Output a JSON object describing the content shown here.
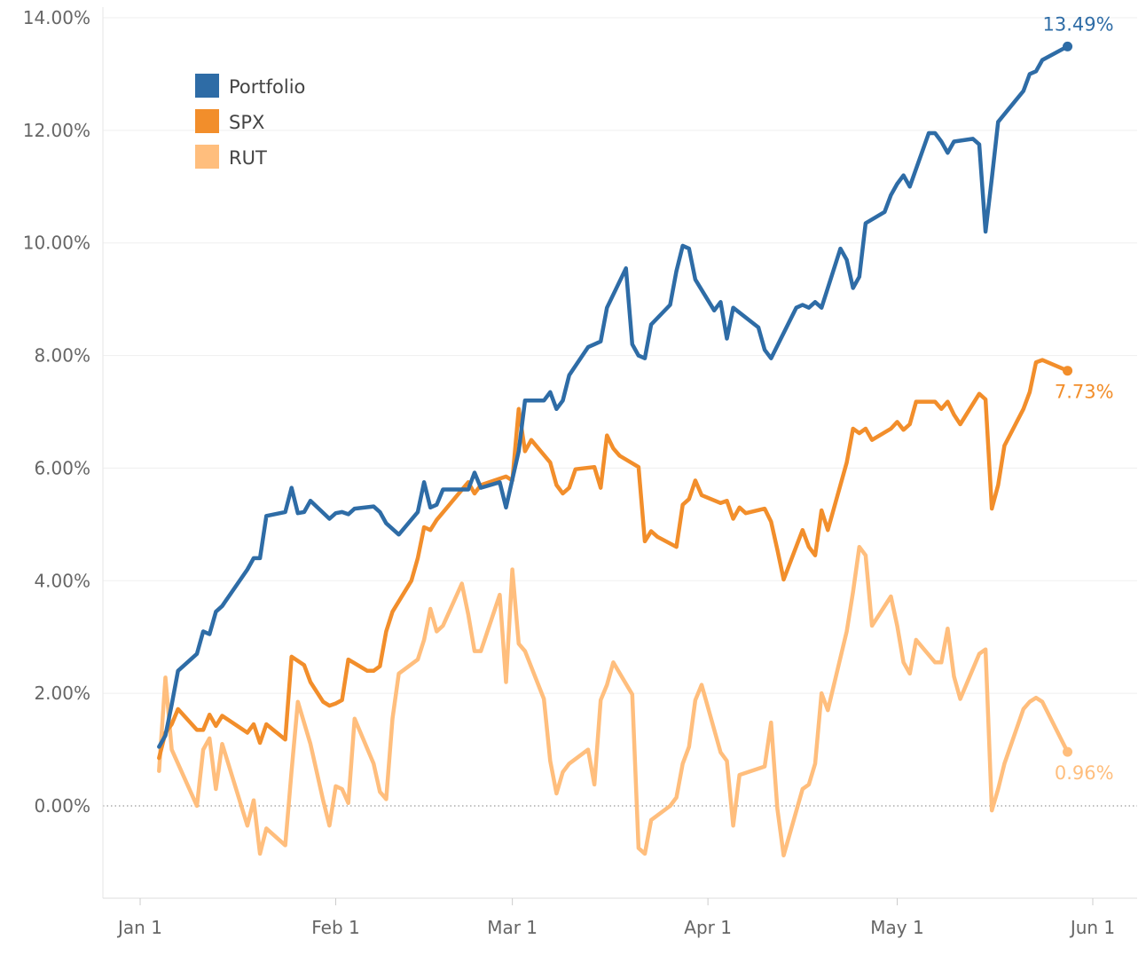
{
  "chart_data": {
    "type": "line",
    "y_ticks": [
      "0.00%",
      "2.00%",
      "4.00%",
      "6.00%",
      "8.00%",
      "10.00%",
      "12.00%",
      "14.00%"
    ],
    "y_tick_values": [
      0,
      2,
      4,
      6,
      8,
      10,
      12,
      14
    ],
    "x_ticks": [
      "Jan 1",
      "Feb 1",
      "Mar 1",
      "Apr 1",
      "May 1",
      "Jun 1"
    ],
    "x_tick_days": [
      0,
      31,
      59,
      90,
      120,
      151
    ],
    "xlim_days": [
      -4,
      155
    ],
    "ylim": [
      -1.6,
      14.1
    ],
    "grid": true,
    "zero_line": "dotted",
    "legend_position": "top-left",
    "series": [
      {
        "name": "Portfolio",
        "color": "#2e6ca6",
        "end_label": "13.49%",
        "points": [
          [
            3,
            1.05
          ],
          [
            4,
            1.25
          ],
          [
            5,
            1.8
          ],
          [
            6,
            2.4
          ],
          [
            9,
            2.7
          ],
          [
            10,
            3.1
          ],
          [
            11,
            3.05
          ],
          [
            12,
            3.45
          ],
          [
            13,
            3.55
          ],
          [
            17,
            4.2
          ],
          [
            18,
            4.4
          ],
          [
            19,
            4.4
          ],
          [
            20,
            5.15
          ],
          [
            23,
            5.22
          ],
          [
            24,
            5.65
          ],
          [
            25,
            5.2
          ],
          [
            26,
            5.22
          ],
          [
            27,
            5.42
          ],
          [
            30,
            5.1
          ],
          [
            31,
            5.2
          ],
          [
            32,
            5.22
          ],
          [
            33,
            5.18
          ],
          [
            34,
            5.28
          ],
          [
            37,
            5.32
          ],
          [
            38,
            5.22
          ],
          [
            39,
            5.02
          ],
          [
            41,
            4.82
          ],
          [
            44,
            5.22
          ],
          [
            45,
            5.75
          ],
          [
            46,
            5.3
          ],
          [
            47,
            5.35
          ],
          [
            48,
            5.62
          ],
          [
            51,
            5.62
          ],
          [
            52,
            5.62
          ],
          [
            53,
            5.92
          ],
          [
            54,
            5.65
          ],
          [
            57,
            5.75
          ],
          [
            58,
            5.3
          ],
          [
            59,
            5.8
          ],
          [
            60,
            6.3
          ],
          [
            61,
            7.2
          ],
          [
            64,
            7.2
          ],
          [
            65,
            7.35
          ],
          [
            66,
            7.05
          ],
          [
            67,
            7.2
          ],
          [
            68,
            7.65
          ],
          [
            71,
            8.15
          ],
          [
            72,
            8.2
          ],
          [
            73,
            8.25
          ],
          [
            74,
            8.85
          ],
          [
            77,
            9.55
          ],
          [
            78,
            8.2
          ],
          [
            79,
            8.0
          ],
          [
            80,
            7.95
          ],
          [
            81,
            8.55
          ],
          [
            84,
            8.9
          ],
          [
            85,
            9.5
          ],
          [
            86,
            9.95
          ],
          [
            87,
            9.9
          ],
          [
            88,
            9.35
          ],
          [
            91,
            8.8
          ],
          [
            92,
            8.95
          ],
          [
            93,
            8.3
          ],
          [
            94,
            8.85
          ],
          [
            98,
            8.5
          ],
          [
            99,
            8.1
          ],
          [
            100,
            7.95
          ],
          [
            104,
            8.85
          ],
          [
            105,
            8.9
          ],
          [
            106,
            8.85
          ],
          [
            107,
            8.95
          ],
          [
            108,
            8.85
          ],
          [
            111,
            9.9
          ],
          [
            112,
            9.7
          ],
          [
            113,
            9.2
          ],
          [
            114,
            9.4
          ],
          [
            115,
            10.35
          ],
          [
            118,
            10.55
          ],
          [
            119,
            10.85
          ],
          [
            120,
            11.05
          ],
          [
            121,
            11.2
          ],
          [
            122,
            11.0
          ],
          [
            125,
            11.95
          ],
          [
            126,
            11.95
          ],
          [
            127,
            11.8
          ],
          [
            128,
            11.6
          ],
          [
            129,
            11.8
          ],
          [
            132,
            11.85
          ],
          [
            133,
            11.75
          ],
          [
            134,
            10.2
          ],
          [
            135,
            11.15
          ],
          [
            136,
            12.15
          ],
          [
            140,
            12.7
          ],
          [
            141,
            13.0
          ],
          [
            142,
            13.05
          ],
          [
            143,
            13.25
          ],
          [
            147,
            13.49
          ]
        ]
      },
      {
        "name": "SPX",
        "color": "#f28e2b",
        "end_label": "7.73%",
        "points": [
          [
            3,
            0.85
          ],
          [
            4,
            1.3
          ],
          [
            5,
            1.45
          ],
          [
            6,
            1.72
          ],
          [
            9,
            1.35
          ],
          [
            10,
            1.35
          ],
          [
            11,
            1.62
          ],
          [
            12,
            1.42
          ],
          [
            13,
            1.6
          ],
          [
            17,
            1.3
          ],
          [
            18,
            1.45
          ],
          [
            19,
            1.12
          ],
          [
            20,
            1.45
          ],
          [
            23,
            1.18
          ],
          [
            24,
            2.65
          ],
          [
            26,
            2.5
          ],
          [
            27,
            2.2
          ],
          [
            29,
            1.85
          ],
          [
            30,
            1.78
          ],
          [
            31,
            1.82
          ],
          [
            32,
            1.88
          ],
          [
            33,
            2.6
          ],
          [
            36,
            2.4
          ],
          [
            37,
            2.4
          ],
          [
            38,
            2.48
          ],
          [
            39,
            3.1
          ],
          [
            40,
            3.45
          ],
          [
            43,
            4.0
          ],
          [
            44,
            4.4
          ],
          [
            45,
            4.95
          ],
          [
            46,
            4.9
          ],
          [
            47,
            5.08
          ],
          [
            52,
            5.75
          ],
          [
            53,
            5.55
          ],
          [
            54,
            5.7
          ],
          [
            58,
            5.85
          ],
          [
            59,
            5.78
          ],
          [
            60,
            7.05
          ],
          [
            61,
            6.3
          ],
          [
            62,
            6.5
          ],
          [
            65,
            6.1
          ],
          [
            66,
            5.7
          ],
          [
            67,
            5.55
          ],
          [
            68,
            5.65
          ],
          [
            69,
            5.98
          ],
          [
            72,
            6.02
          ],
          [
            73,
            5.65
          ],
          [
            74,
            6.58
          ],
          [
            75,
            6.35
          ],
          [
            76,
            6.22
          ],
          [
            79,
            6.02
          ],
          [
            80,
            4.7
          ],
          [
            81,
            4.88
          ],
          [
            82,
            4.78
          ],
          [
            85,
            4.6
          ],
          [
            86,
            5.35
          ],
          [
            87,
            5.45
          ],
          [
            88,
            5.78
          ],
          [
            89,
            5.52
          ],
          [
            92,
            5.38
          ],
          [
            93,
            5.42
          ],
          [
            94,
            5.1
          ],
          [
            95,
            5.3
          ],
          [
            96,
            5.2
          ],
          [
            99,
            5.28
          ],
          [
            100,
            5.05
          ],
          [
            101,
            4.55
          ],
          [
            102,
            4.02
          ],
          [
            105,
            4.9
          ],
          [
            106,
            4.6
          ],
          [
            107,
            4.45
          ],
          [
            108,
            5.25
          ],
          [
            109,
            4.9
          ],
          [
            112,
            6.1
          ],
          [
            113,
            6.7
          ],
          [
            114,
            6.62
          ],
          [
            115,
            6.7
          ],
          [
            116,
            6.5
          ],
          [
            119,
            6.7
          ],
          [
            120,
            6.82
          ],
          [
            121,
            6.68
          ],
          [
            122,
            6.78
          ],
          [
            123,
            7.18
          ],
          [
            126,
            7.18
          ],
          [
            127,
            7.05
          ],
          [
            128,
            7.18
          ],
          [
            129,
            6.95
          ],
          [
            130,
            6.78
          ],
          [
            133,
            7.32
          ],
          [
            134,
            7.22
          ],
          [
            135,
            5.28
          ],
          [
            136,
            5.7
          ],
          [
            137,
            6.4
          ],
          [
            140,
            7.05
          ],
          [
            141,
            7.35
          ],
          [
            142,
            7.88
          ],
          [
            143,
            7.92
          ],
          [
            147,
            7.73
          ]
        ]
      },
      {
        "name": "RUT",
        "color": "#ffbe7d",
        "end_label": "0.96%",
        "points": [
          [
            3,
            0.62
          ],
          [
            4,
            2.28
          ],
          [
            5,
            1.0
          ],
          [
            6,
            0.75
          ],
          [
            9,
            0.0
          ],
          [
            10,
            1.0
          ],
          [
            11,
            1.2
          ],
          [
            12,
            0.3
          ],
          [
            13,
            1.1
          ],
          [
            17,
            -0.35
          ],
          [
            18,
            0.1
          ],
          [
            19,
            -0.85
          ],
          [
            20,
            -0.4
          ],
          [
            23,
            -0.7
          ],
          [
            24,
            0.62
          ],
          [
            25,
            1.85
          ],
          [
            27,
            1.1
          ],
          [
            29,
            0.1
          ],
          [
            30,
            -0.35
          ],
          [
            31,
            0.35
          ],
          [
            32,
            0.3
          ],
          [
            33,
            0.05
          ],
          [
            34,
            1.55
          ],
          [
            37,
            0.75
          ],
          [
            38,
            0.25
          ],
          [
            39,
            0.12
          ],
          [
            40,
            1.55
          ],
          [
            41,
            2.35
          ],
          [
            44,
            2.6
          ],
          [
            45,
            2.95
          ],
          [
            46,
            3.5
          ],
          [
            47,
            3.1
          ],
          [
            48,
            3.2
          ],
          [
            51,
            3.95
          ],
          [
            52,
            3.4
          ],
          [
            53,
            2.75
          ],
          [
            54,
            2.75
          ],
          [
            57,
            3.75
          ],
          [
            58,
            2.2
          ],
          [
            59,
            4.2
          ],
          [
            60,
            2.88
          ],
          [
            61,
            2.75
          ],
          [
            64,
            1.9
          ],
          [
            65,
            0.8
          ],
          [
            66,
            0.22
          ],
          [
            67,
            0.6
          ],
          [
            68,
            0.75
          ],
          [
            71,
            1.0
          ],
          [
            72,
            0.38
          ],
          [
            73,
            1.88
          ],
          [
            74,
            2.15
          ],
          [
            75,
            2.55
          ],
          [
            78,
            1.98
          ],
          [
            79,
            -0.75
          ],
          [
            80,
            -0.85
          ],
          [
            81,
            -0.25
          ],
          [
            84,
            0.0
          ],
          [
            85,
            0.15
          ],
          [
            86,
            0.75
          ],
          [
            87,
            1.05
          ],
          [
            88,
            1.88
          ],
          [
            89,
            2.15
          ],
          [
            92,
            0.95
          ],
          [
            93,
            0.8
          ],
          [
            94,
            -0.35
          ],
          [
            95,
            0.55
          ],
          [
            99,
            0.7
          ],
          [
            100,
            1.48
          ],
          [
            101,
            -0.05
          ],
          [
            102,
            -0.88
          ],
          [
            105,
            0.3
          ],
          [
            106,
            0.38
          ],
          [
            107,
            0.75
          ],
          [
            108,
            2.0
          ],
          [
            109,
            1.7
          ],
          [
            112,
            3.1
          ],
          [
            113,
            3.8
          ],
          [
            114,
            4.6
          ],
          [
            115,
            4.45
          ],
          [
            116,
            3.2
          ],
          [
            119,
            3.72
          ],
          [
            120,
            3.2
          ],
          [
            121,
            2.55
          ],
          [
            122,
            2.35
          ],
          [
            123,
            2.95
          ],
          [
            126,
            2.55
          ],
          [
            127,
            2.55
          ],
          [
            128,
            3.15
          ],
          [
            129,
            2.3
          ],
          [
            130,
            1.9
          ],
          [
            133,
            2.7
          ],
          [
            134,
            2.78
          ],
          [
            135,
            -0.08
          ],
          [
            136,
            0.3
          ],
          [
            137,
            0.75
          ],
          [
            140,
            1.72
          ],
          [
            141,
            1.85
          ],
          [
            142,
            1.92
          ],
          [
            143,
            1.85
          ],
          [
            147,
            0.96
          ]
        ]
      }
    ]
  }
}
